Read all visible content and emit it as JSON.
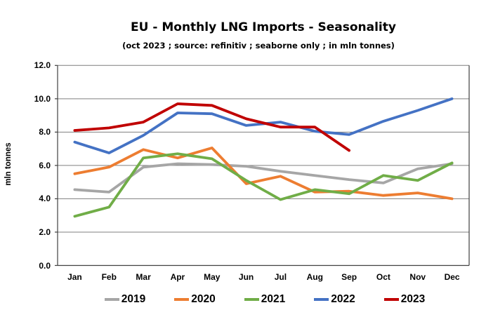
{
  "title": "EU - Monthly LNG Imports - Seasonality",
  "subtitle": "(oct 2023 ; source: refinitiv ; seaborne only ; in mln tonnes)",
  "chart_data": {
    "type": "line",
    "title": "EU - Monthly LNG Imports - Seasonality",
    "subtitle": "(oct 2023 ; source: refinitiv ; seaborne only ; in mln tonnes)",
    "ylabel": "mln tonnes",
    "xlabel": "",
    "ylim": [
      0,
      12
    ],
    "ytick_step": 2,
    "grid": true,
    "legend_position": "bottom",
    "categories": [
      "Jan",
      "Feb",
      "Mar",
      "Apr",
      "May",
      "Jun",
      "Jul",
      "Aug",
      "Sep",
      "Oct",
      "Nov",
      "Dec"
    ],
    "series": [
      {
        "name": "2019",
        "color": "#A6A6A6",
        "values": [
          4.55,
          4.4,
          5.9,
          6.1,
          6.05,
          5.95,
          5.65,
          5.4,
          5.15,
          4.95,
          5.8,
          6.1
        ]
      },
      {
        "name": "2020",
        "color": "#ED7D31",
        "values": [
          5.5,
          5.9,
          6.95,
          6.45,
          7.05,
          4.9,
          5.35,
          4.4,
          4.45,
          4.2,
          4.35,
          4.0
        ]
      },
      {
        "name": "2021",
        "color": "#70AD47",
        "values": [
          2.95,
          3.5,
          6.45,
          6.7,
          6.4,
          5.1,
          3.95,
          4.55,
          4.3,
          5.4,
          5.1,
          6.15
        ]
      },
      {
        "name": "2022",
        "color": "#4472C4",
        "values": [
          7.4,
          6.75,
          7.8,
          9.15,
          9.1,
          8.4,
          8.6,
          8.05,
          7.85,
          8.65,
          9.3,
          10.0
        ]
      },
      {
        "name": "2023",
        "color": "#C00000",
        "values": [
          8.1,
          8.25,
          8.6,
          9.7,
          9.6,
          8.8,
          8.3,
          8.3,
          6.9,
          null,
          null,
          null
        ]
      }
    ],
    "axis_color": "#404040",
    "grid_color": "#7F7F7F"
  }
}
